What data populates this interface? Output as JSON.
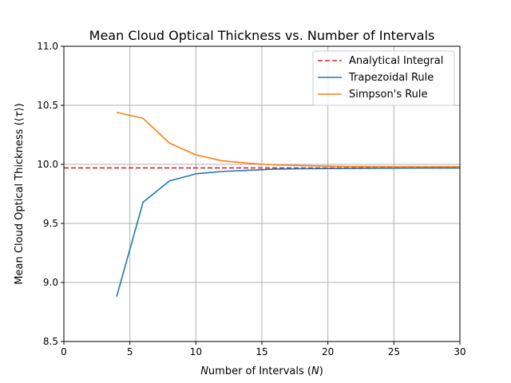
{
  "chart_data": {
    "type": "line",
    "title": "Mean Cloud Optical Thickness vs. Number of Intervals",
    "xlabel": "Number of Intervals (N)",
    "ylabel": "Mean Cloud Optical Thickness (⟨τ⟩)",
    "xlim": [
      0,
      30
    ],
    "ylim": [
      8.5,
      11.0
    ],
    "xticks": [
      0,
      5,
      10,
      15,
      20,
      25,
      30
    ],
    "yticks": [
      8.5,
      9.0,
      9.5,
      10.0,
      10.5,
      11.0
    ],
    "xtick_labels": [
      "0",
      "5",
      "10",
      "15",
      "20",
      "25",
      "30"
    ],
    "ytick_labels": [
      "8.5",
      "9.0",
      "9.5",
      "10.0",
      "10.5",
      "11.0"
    ],
    "grid": true,
    "legend_position": "top-right",
    "analytical_value": 9.97,
    "series": [
      {
        "name": "Analytical Integral",
        "style": "dashed",
        "color": "#d62728",
        "x": [
          0,
          30
        ],
        "y": [
          9.97,
          9.97
        ]
      },
      {
        "name": "Trapezoidal Rule",
        "style": "solid",
        "color": "#1f77b4",
        "x": [
          4,
          6,
          8,
          10,
          12,
          14,
          16,
          18,
          20,
          22,
          24,
          26,
          28,
          30
        ],
        "y": [
          8.88,
          9.68,
          9.86,
          9.92,
          9.94,
          9.95,
          9.96,
          9.963,
          9.965,
          9.966,
          9.967,
          9.968,
          9.969,
          9.969
        ]
      },
      {
        "name": "Simpson's Rule",
        "style": "solid",
        "color": "#ff7f0e",
        "x": [
          4,
          6,
          8,
          10,
          12,
          14,
          16,
          18,
          20,
          22,
          24,
          26,
          28,
          30
        ],
        "y": [
          10.44,
          10.39,
          10.18,
          10.08,
          10.03,
          10.01,
          9.995,
          9.99,
          9.985,
          9.982,
          9.98,
          9.98,
          9.98,
          9.98
        ]
      }
    ]
  }
}
